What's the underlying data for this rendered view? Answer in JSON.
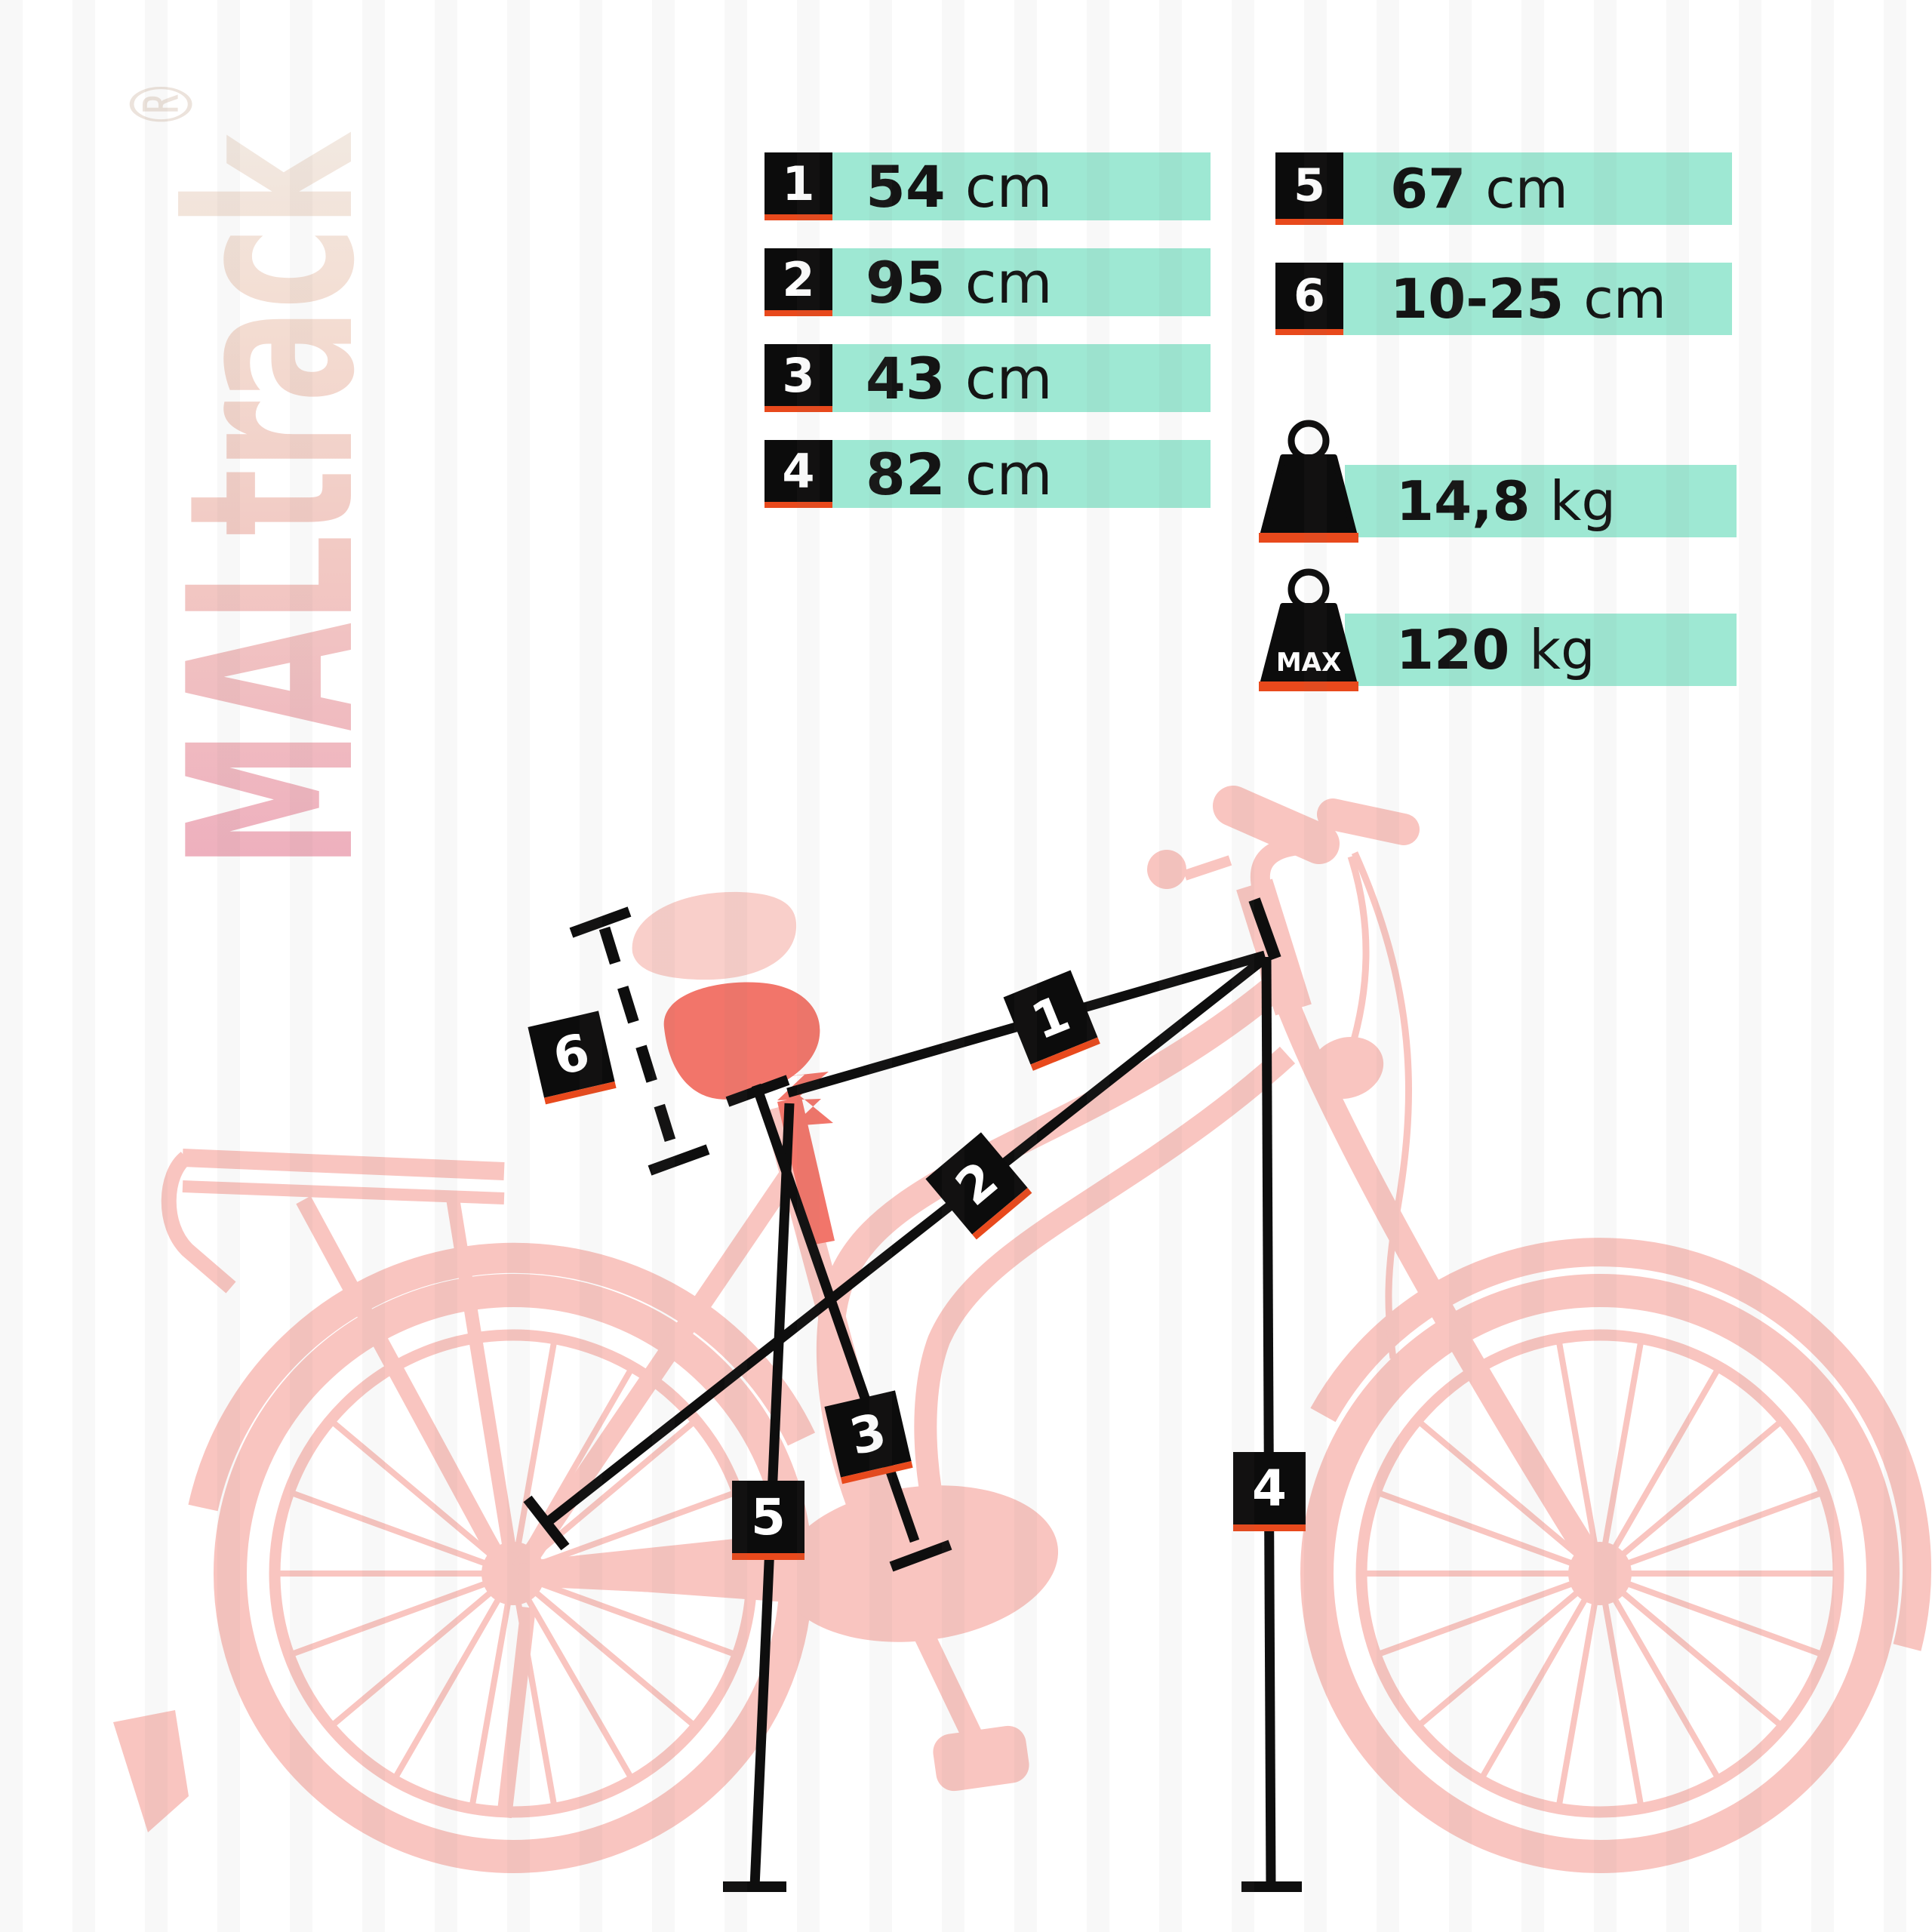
{
  "brand": {
    "logo_text": "MALtrack",
    "registered": "®"
  },
  "specs": [
    {
      "id": "1",
      "value": "54",
      "unit": "cm"
    },
    {
      "id": "2",
      "value": "95",
      "unit": "cm"
    },
    {
      "id": "3",
      "value": "43",
      "unit": "cm"
    },
    {
      "id": "4",
      "value": "82",
      "unit": "cm"
    },
    {
      "id": "5",
      "value": "67",
      "unit": "cm"
    },
    {
      "id": "6",
      "value": "10-25",
      "unit": "cm"
    }
  ],
  "weights": [
    {
      "badge": "",
      "value": "14,8",
      "unit": "kg"
    },
    {
      "badge": "MAX",
      "value": "120",
      "unit": "kg"
    }
  ],
  "diagram": {
    "markers": [
      "1",
      "2",
      "3",
      "4",
      "5",
      "6"
    ]
  },
  "colors": {
    "teal": "#9EE8D3",
    "accent_red": "#E8491C",
    "black": "#0C0C0C",
    "bike_pink": "#F9C5C0",
    "saddle_coral": "#F2756A"
  }
}
